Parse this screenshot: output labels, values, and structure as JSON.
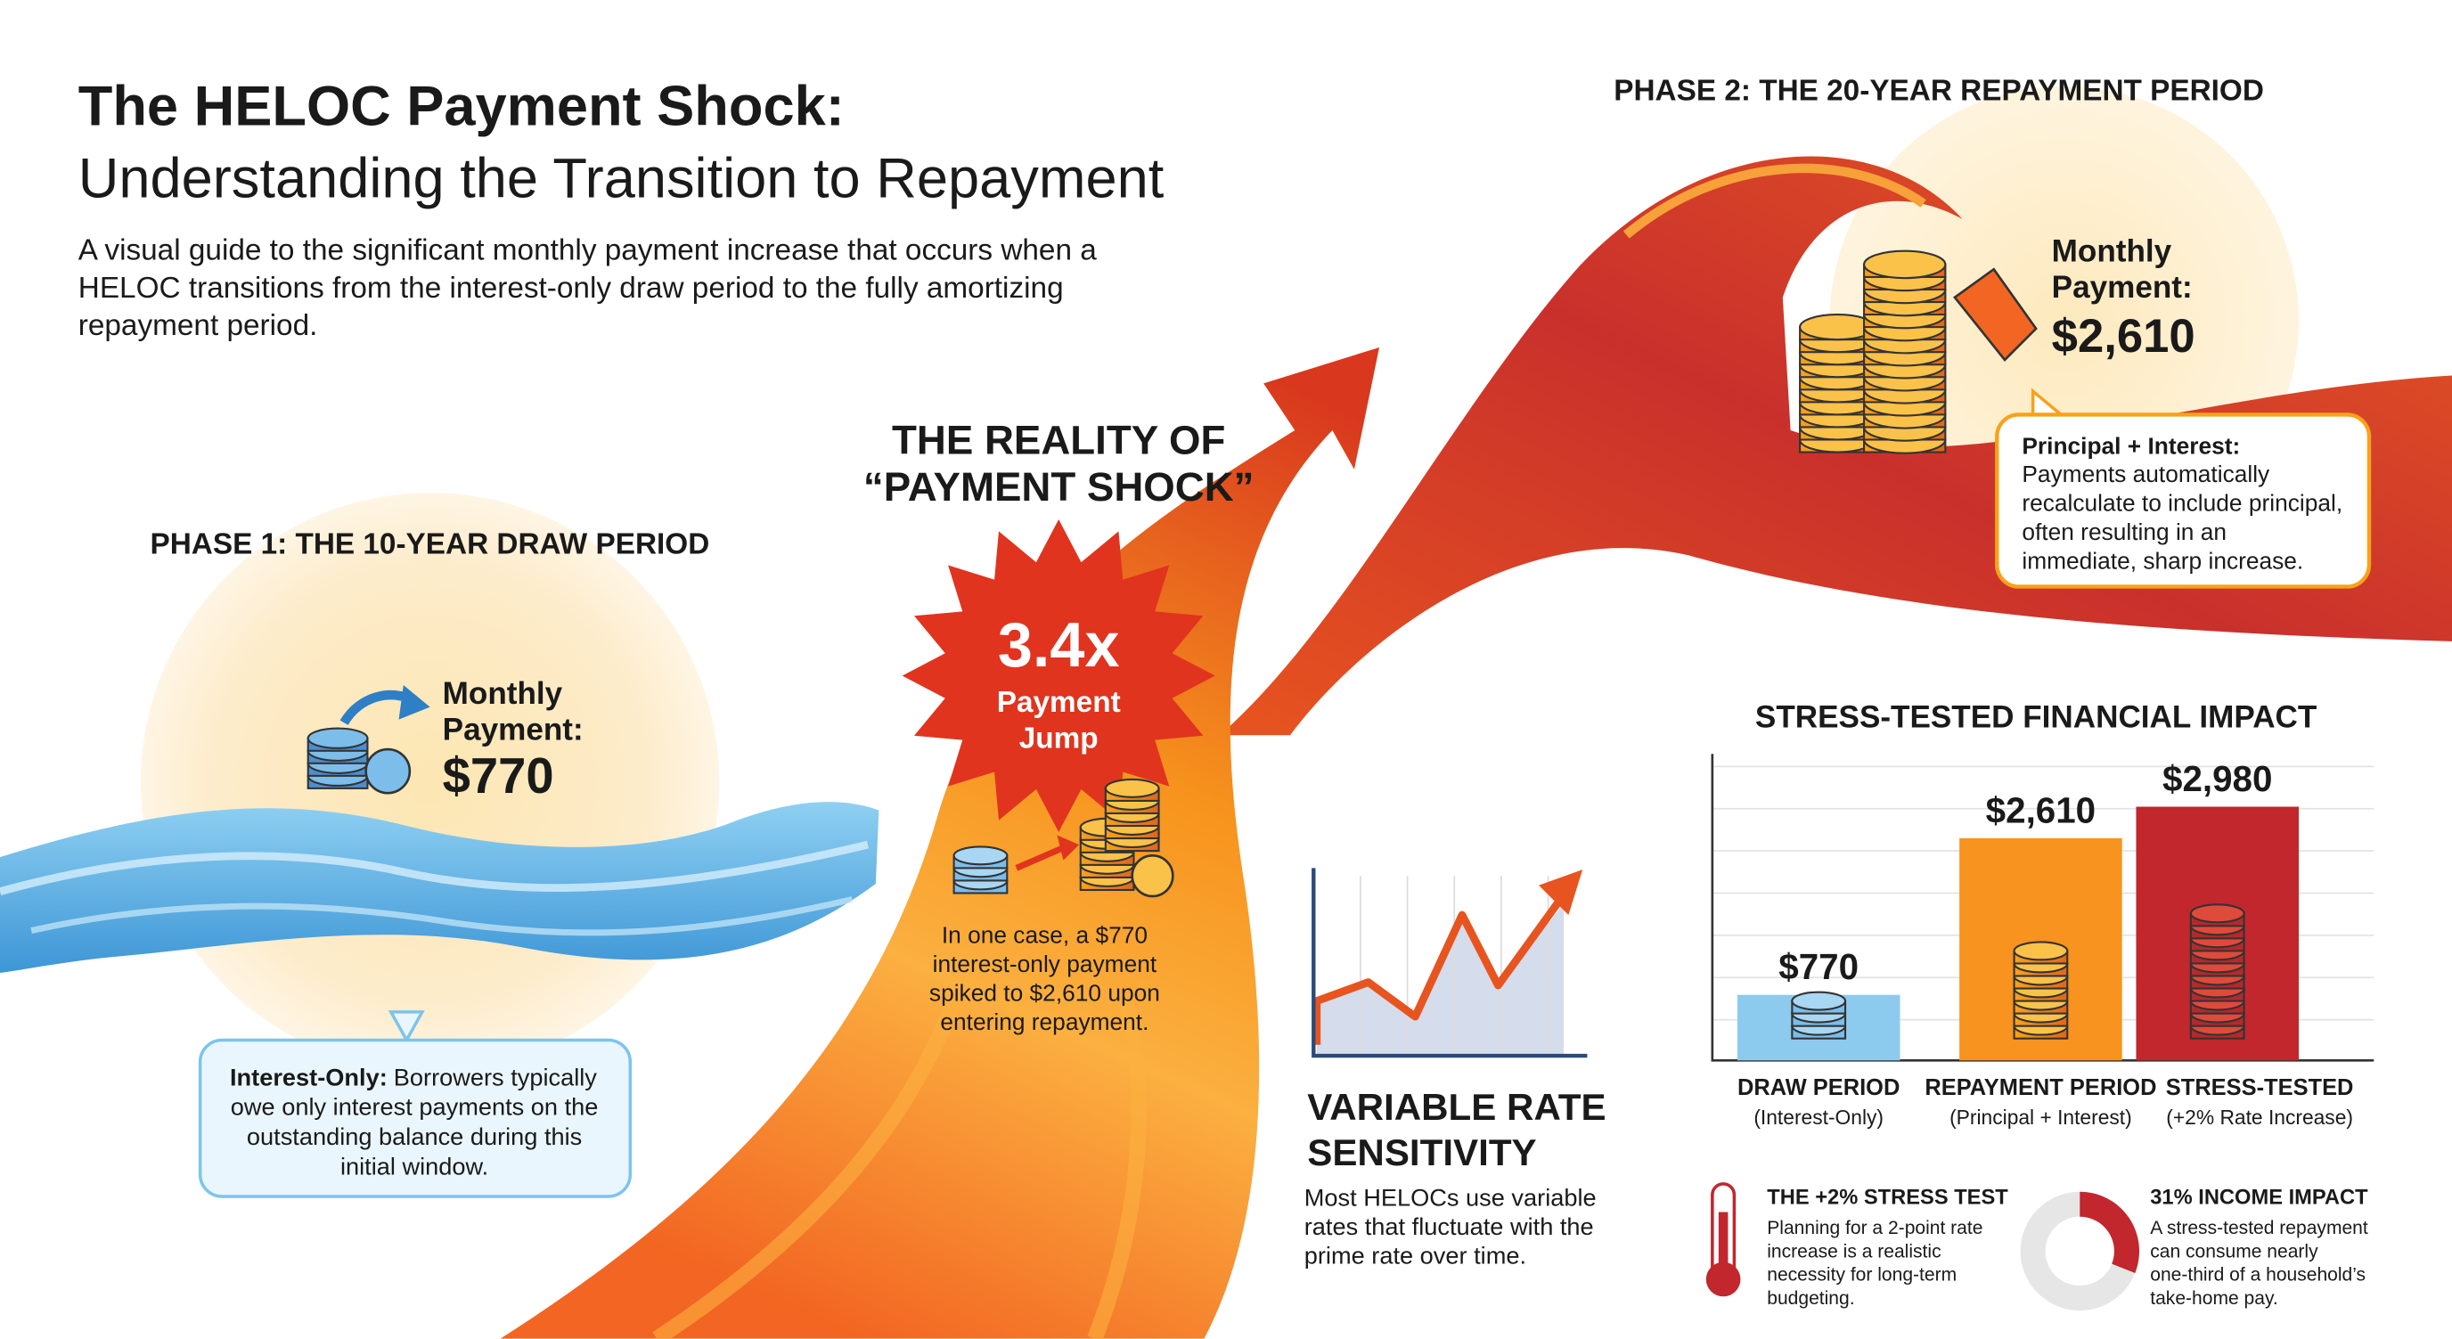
{
  "header": {
    "title": "The HELOC Payment Shock:",
    "subtitle": "Understanding the Transition to Repayment",
    "description_lines": [
      "A visual guide to the significant monthly payment increase that occurs when a",
      "HELOC transitions from the interest-only draw period to the fully amortizing",
      "repayment period."
    ]
  },
  "phase1": {
    "heading": "PHASE 1: THE 10-YEAR DRAW PERIOD",
    "payment_label_lines": [
      "Monthly",
      "Payment:"
    ],
    "payment": "$770",
    "note_label": "Interest-Only:",
    "note_lines": [
      "Borrowers typically",
      "owe only interest payments on the",
      "outstanding balance during this",
      "initial window."
    ]
  },
  "shock": {
    "heading_lines": [
      "THE REALITY OF",
      "“PAYMENT SHOCK”"
    ],
    "multiplier": "3.4x",
    "multiplier_lines": [
      "Payment",
      "Jump"
    ],
    "note_lines": [
      "In one case, a $770",
      "interest-only payment",
      "spiked to $2,610 upon",
      "entering repayment."
    ]
  },
  "phase2": {
    "heading": "PHASE 2: THE 20-YEAR REPAYMENT PERIOD",
    "payment_label_lines": [
      "Monthly",
      "Payment:"
    ],
    "payment": "$2,610",
    "note_label": "Principal + Interest:",
    "note_lines": [
      "Payments automatically",
      "recalculate to include principal,",
      "often resulting in an",
      "immediate, sharp increase."
    ]
  },
  "variable_rate": {
    "title_lines": [
      "VARIABLE RATE",
      "SENSITIVITY"
    ],
    "text_lines": [
      "Most HELOCs use variable",
      "rates that fluctuate with the",
      "prime rate over time."
    ]
  },
  "chart_data": {
    "type": "bar",
    "title": "STRESS-TESTED FINANCIAL IMPACT",
    "categories": [
      "DRAW PERIOD",
      "REPAYMENT PERIOD",
      "STRESS-TESTED"
    ],
    "category_notes": [
      "(Interest-Only)",
      "(Principal + Interest)",
      "(+2% Rate Increase)"
    ],
    "values": [
      770,
      2610,
      2980
    ],
    "value_labels": [
      "$770",
      "$2,610",
      "$2,980"
    ],
    "colors": [
      "#8ccaee",
      "#f7931e",
      "#c1272d"
    ],
    "ylim": [
      0,
      3600
    ],
    "grid": true
  },
  "stress_test": {
    "heading": "THE +2% STRESS TEST",
    "text_lines": [
      "Planning for a 2-point rate",
      "increase is a realistic",
      "necessity for long-term",
      "budgeting."
    ]
  },
  "income_impact": {
    "heading": "31% INCOME IMPACT",
    "share": 31,
    "text_lines": [
      "A stress-tested repayment",
      "can consume nearly",
      "one-third of a household’s",
      "take-home pay."
    ]
  }
}
